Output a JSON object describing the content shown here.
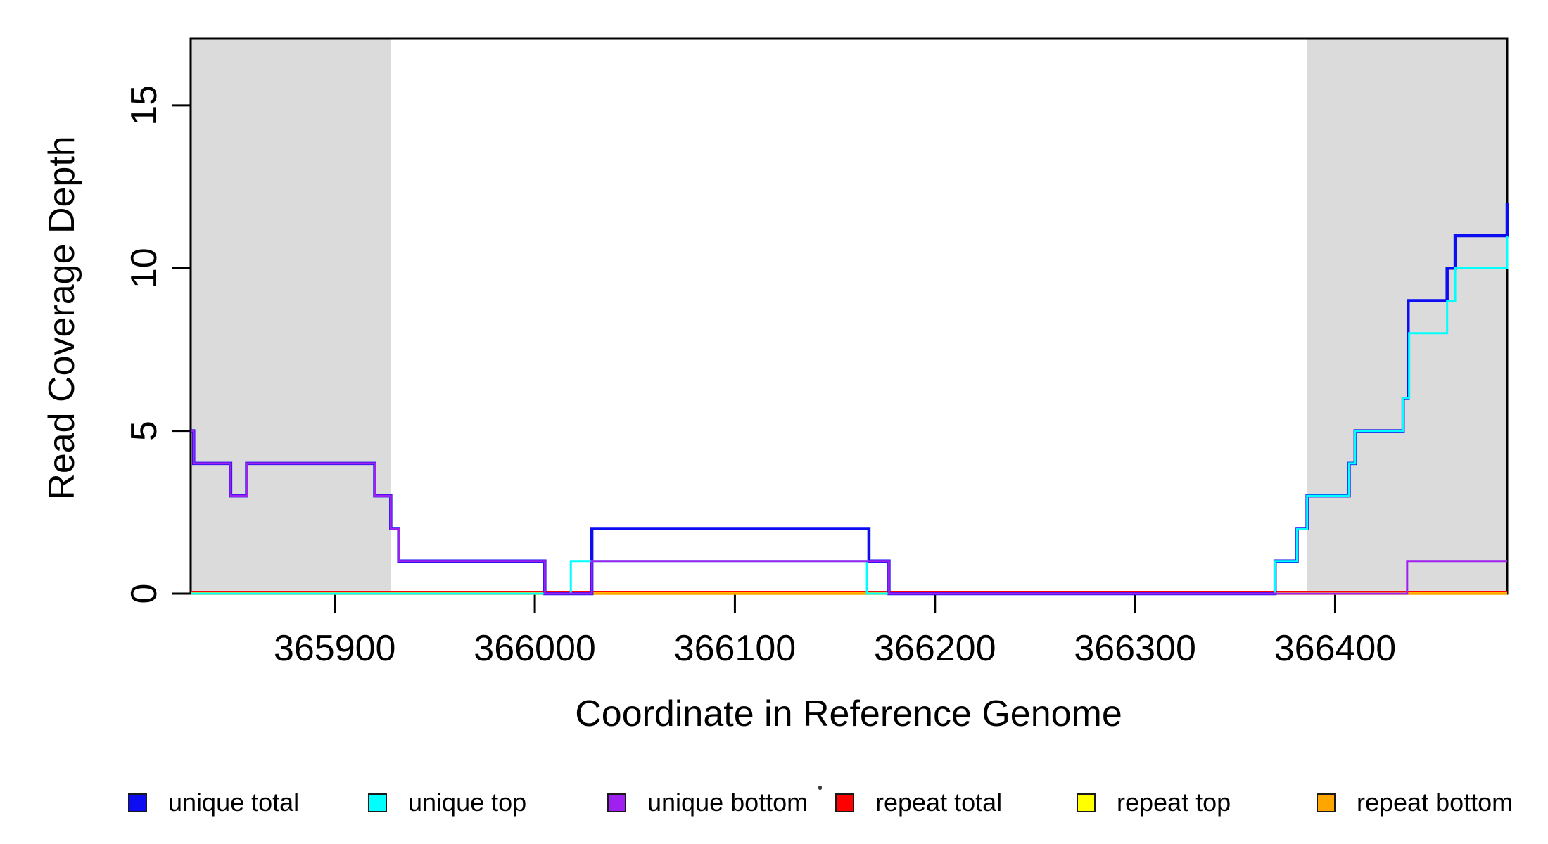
{
  "figure": {
    "background": "#ffffff"
  },
  "chart_data": {
    "type": "line",
    "subtype": "step",
    "title": "",
    "xlabel": "Coordinate in Reference Genome",
    "ylabel": "Read Coverage Depth",
    "xlim": [
      365828,
      366486
    ],
    "ylim": [
      0,
      17.05
    ],
    "x_ticks": [
      365900,
      366000,
      366100,
      366200,
      366300,
      366400
    ],
    "y_ticks": [
      0,
      5,
      10,
      15
    ],
    "grid": false,
    "legend_position": "bottom",
    "axis_color": "#000000",
    "shaded_region_color": "#DBDBDB",
    "shaded_regions": [
      {
        "name": "shaded-region-left",
        "x0": 365828,
        "x1": 365928
      },
      {
        "name": "shaded-region-right",
        "x0": 366386,
        "x1": 366486
      }
    ],
    "draw_order": [
      "repeat total",
      "repeat top",
      "repeat bottom",
      "unique total",
      "unique top",
      "unique bottom"
    ],
    "series": [
      {
        "name": "unique total",
        "color": "#0D0DF2",
        "breakpoints": [
          [
            365828,
            5
          ],
          [
            365829.5,
            4
          ],
          [
            365848,
            3
          ],
          [
            365856,
            4
          ],
          [
            365920,
            3
          ],
          [
            365928,
            2
          ],
          [
            365932,
            1
          ],
          [
            366005,
            0
          ],
          [
            366028.5,
            2
          ],
          [
            366167,
            1
          ],
          [
            366177,
            0
          ],
          [
            366370,
            1
          ],
          [
            366381,
            2
          ],
          [
            366386,
            3
          ],
          [
            366407,
            4
          ],
          [
            366410,
            5
          ],
          [
            366434,
            6
          ],
          [
            366436.5,
            9
          ],
          [
            366456,
            10
          ],
          [
            366460,
            11
          ],
          [
            366486,
            12
          ]
        ],
        "x_end": 366486
      },
      {
        "name": "unique top",
        "color": "#00FFFF",
        "breakpoints": [
          [
            365828,
            0
          ],
          [
            366018,
            1
          ],
          [
            366166,
            0
          ],
          [
            366370,
            1
          ],
          [
            366381,
            2
          ],
          [
            366386,
            3
          ],
          [
            366407,
            4
          ],
          [
            366410,
            5
          ],
          [
            366434,
            6
          ],
          [
            366437,
            8
          ],
          [
            366456,
            9
          ],
          [
            366460,
            10
          ],
          [
            366486,
            11
          ]
        ],
        "x_end": 366486
      },
      {
        "name": "unique bottom",
        "color": "#A020F0",
        "breakpoints": [
          [
            365828,
            5
          ],
          [
            365829.5,
            4
          ],
          [
            365848,
            3
          ],
          [
            365856,
            4
          ],
          [
            365920,
            3
          ],
          [
            365928,
            2
          ],
          [
            365932,
            1
          ],
          [
            366005,
            0
          ],
          [
            366028.5,
            1
          ],
          [
            366177,
            0
          ],
          [
            366436,
            1
          ]
        ],
        "x_end": 366486
      },
      {
        "name": "repeat total",
        "color": "#FF0000",
        "breakpoints": [
          [
            365828,
            0
          ]
        ],
        "x_end": 366486
      },
      {
        "name": "repeat top",
        "color": "#FFFF00",
        "breakpoints": [
          [
            365828,
            0
          ]
        ],
        "x_end": 366486
      },
      {
        "name": "repeat bottom",
        "color": "#FFA500",
        "breakpoints": [
          [
            365828,
            0
          ]
        ],
        "x_end": 366486
      }
    ]
  },
  "legend": {
    "items": [
      {
        "label": "unique total",
        "color": "#0D0DF2"
      },
      {
        "label": "unique top",
        "color": "#00FFFF"
      },
      {
        "label": "unique bottom",
        "color": "#A020F0"
      },
      {
        "label": "repeat total",
        "color": "#FF0000"
      },
      {
        "label": "repeat top",
        "color": "#FFFF00"
      },
      {
        "label": "repeat bottom",
        "color": "#FFA500"
      }
    ]
  }
}
